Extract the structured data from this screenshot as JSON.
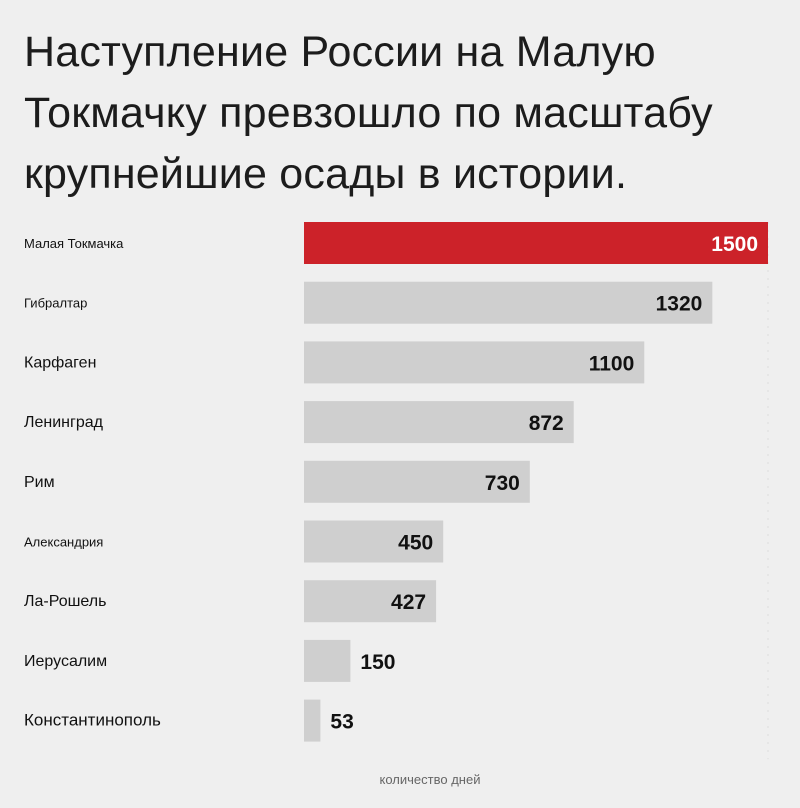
{
  "title_lines": [
    "Наступление России на Малую",
    "Токмачку превзошло по масштабу",
    "крупнейшие осады в истории."
  ],
  "colors": {
    "highlight": "#cc2229",
    "bar": "#cfcfcf",
    "background": "#efefef"
  },
  "chart_data": {
    "type": "bar",
    "orientation": "horizontal",
    "title": "Наступление России на Малую Токмачку превзошло по масштабу крупнейшие осады в истории.",
    "xlabel": "количество дней",
    "ylabel": "",
    "categories": [
      "Малая Токмачка",
      "Гибралтар",
      "Карфаген",
      "Ленинград",
      "Рим",
      "Александрия",
      "Ла-Рошель",
      "Иерусалим",
      "Константинополь"
    ],
    "values": [
      1500,
      1320,
      1100,
      872,
      730,
      450,
      427,
      150,
      53
    ],
    "highlight_index": 0,
    "xlim": [
      0,
      1500
    ],
    "grid": false,
    "legend": "none"
  }
}
